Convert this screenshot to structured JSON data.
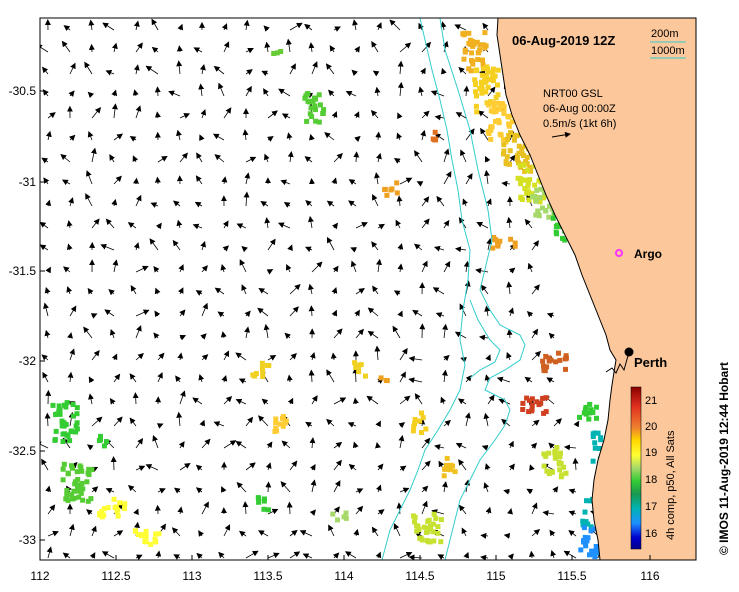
{
  "map": {
    "title": "06-Aug-2019 12Z",
    "legend_200m": "200m",
    "legend_1000m": "1000m",
    "product_line1": "NRT00 GSL",
    "product_line2": "06-Aug 00:00Z",
    "product_line3": "0.5m/s (1kt 6h)",
    "place_argo": "Argo",
    "place_perth": "Perth",
    "credit": "© IMOS 11-Aug-2019 12:44 Hobart",
    "colorbar_label": "4h comp, p50, All Sats",
    "colorbar_ticks": [
      "21",
      "20",
      "19",
      "18",
      "17",
      "16"
    ],
    "colorbar_colors": [
      "#8b0000",
      "#d73027",
      "#f46d43",
      "#fdae61",
      "#ffd700",
      "#ffff33",
      "#a6d96a",
      "#33cc33",
      "#1a9850",
      "#00b3b3",
      "#1e90ff",
      "#0000cd",
      "#00008b"
    ],
    "x_ticks": [
      "112",
      "112.5",
      "113",
      "113.5",
      "114",
      "114.5",
      "115",
      "115.5",
      "116"
    ],
    "y_ticks": [
      "-30.5",
      "-31",
      "-31.5",
      "-32",
      "-32.5",
      "-33"
    ],
    "land_color": "#fcc79a",
    "isobath_color": "#33cccc",
    "argo_color": "#ff33ff"
  }
}
